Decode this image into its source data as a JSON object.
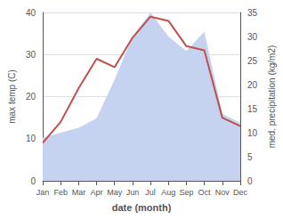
{
  "chart_data": {
    "type": "line",
    "xlabel": "date (month)",
    "ylabel": "max temp (C)",
    "y2label": "med. precipitation (kg/m2)",
    "categories": [
      "Jan",
      "Feb",
      "Mar",
      "Apr",
      "May",
      "Jun",
      "Jul",
      "Aug",
      "Sep",
      "Oct",
      "Nov",
      "Dec"
    ],
    "series": [
      {
        "type": "area",
        "color": "#c5d3f0",
        "axis": "y2",
        "values": [
          9,
          10,
          11,
          13,
          21,
          30,
          35,
          30,
          27,
          31,
          14,
          12
        ]
      },
      {
        "type": "line",
        "color": "#c0504d",
        "values": [
          9,
          14,
          22,
          29,
          27,
          34,
          39,
          38,
          32,
          31,
          15,
          13
        ]
      }
    ],
    "ylim": [
      0,
      40
    ],
    "yticks": [
      0,
      10,
      20,
      30,
      40
    ],
    "y2lim": [
      0,
      35
    ],
    "y2ticks": [
      0,
      5,
      10,
      15,
      20,
      25,
      30,
      35
    ],
    "grid": true
  }
}
